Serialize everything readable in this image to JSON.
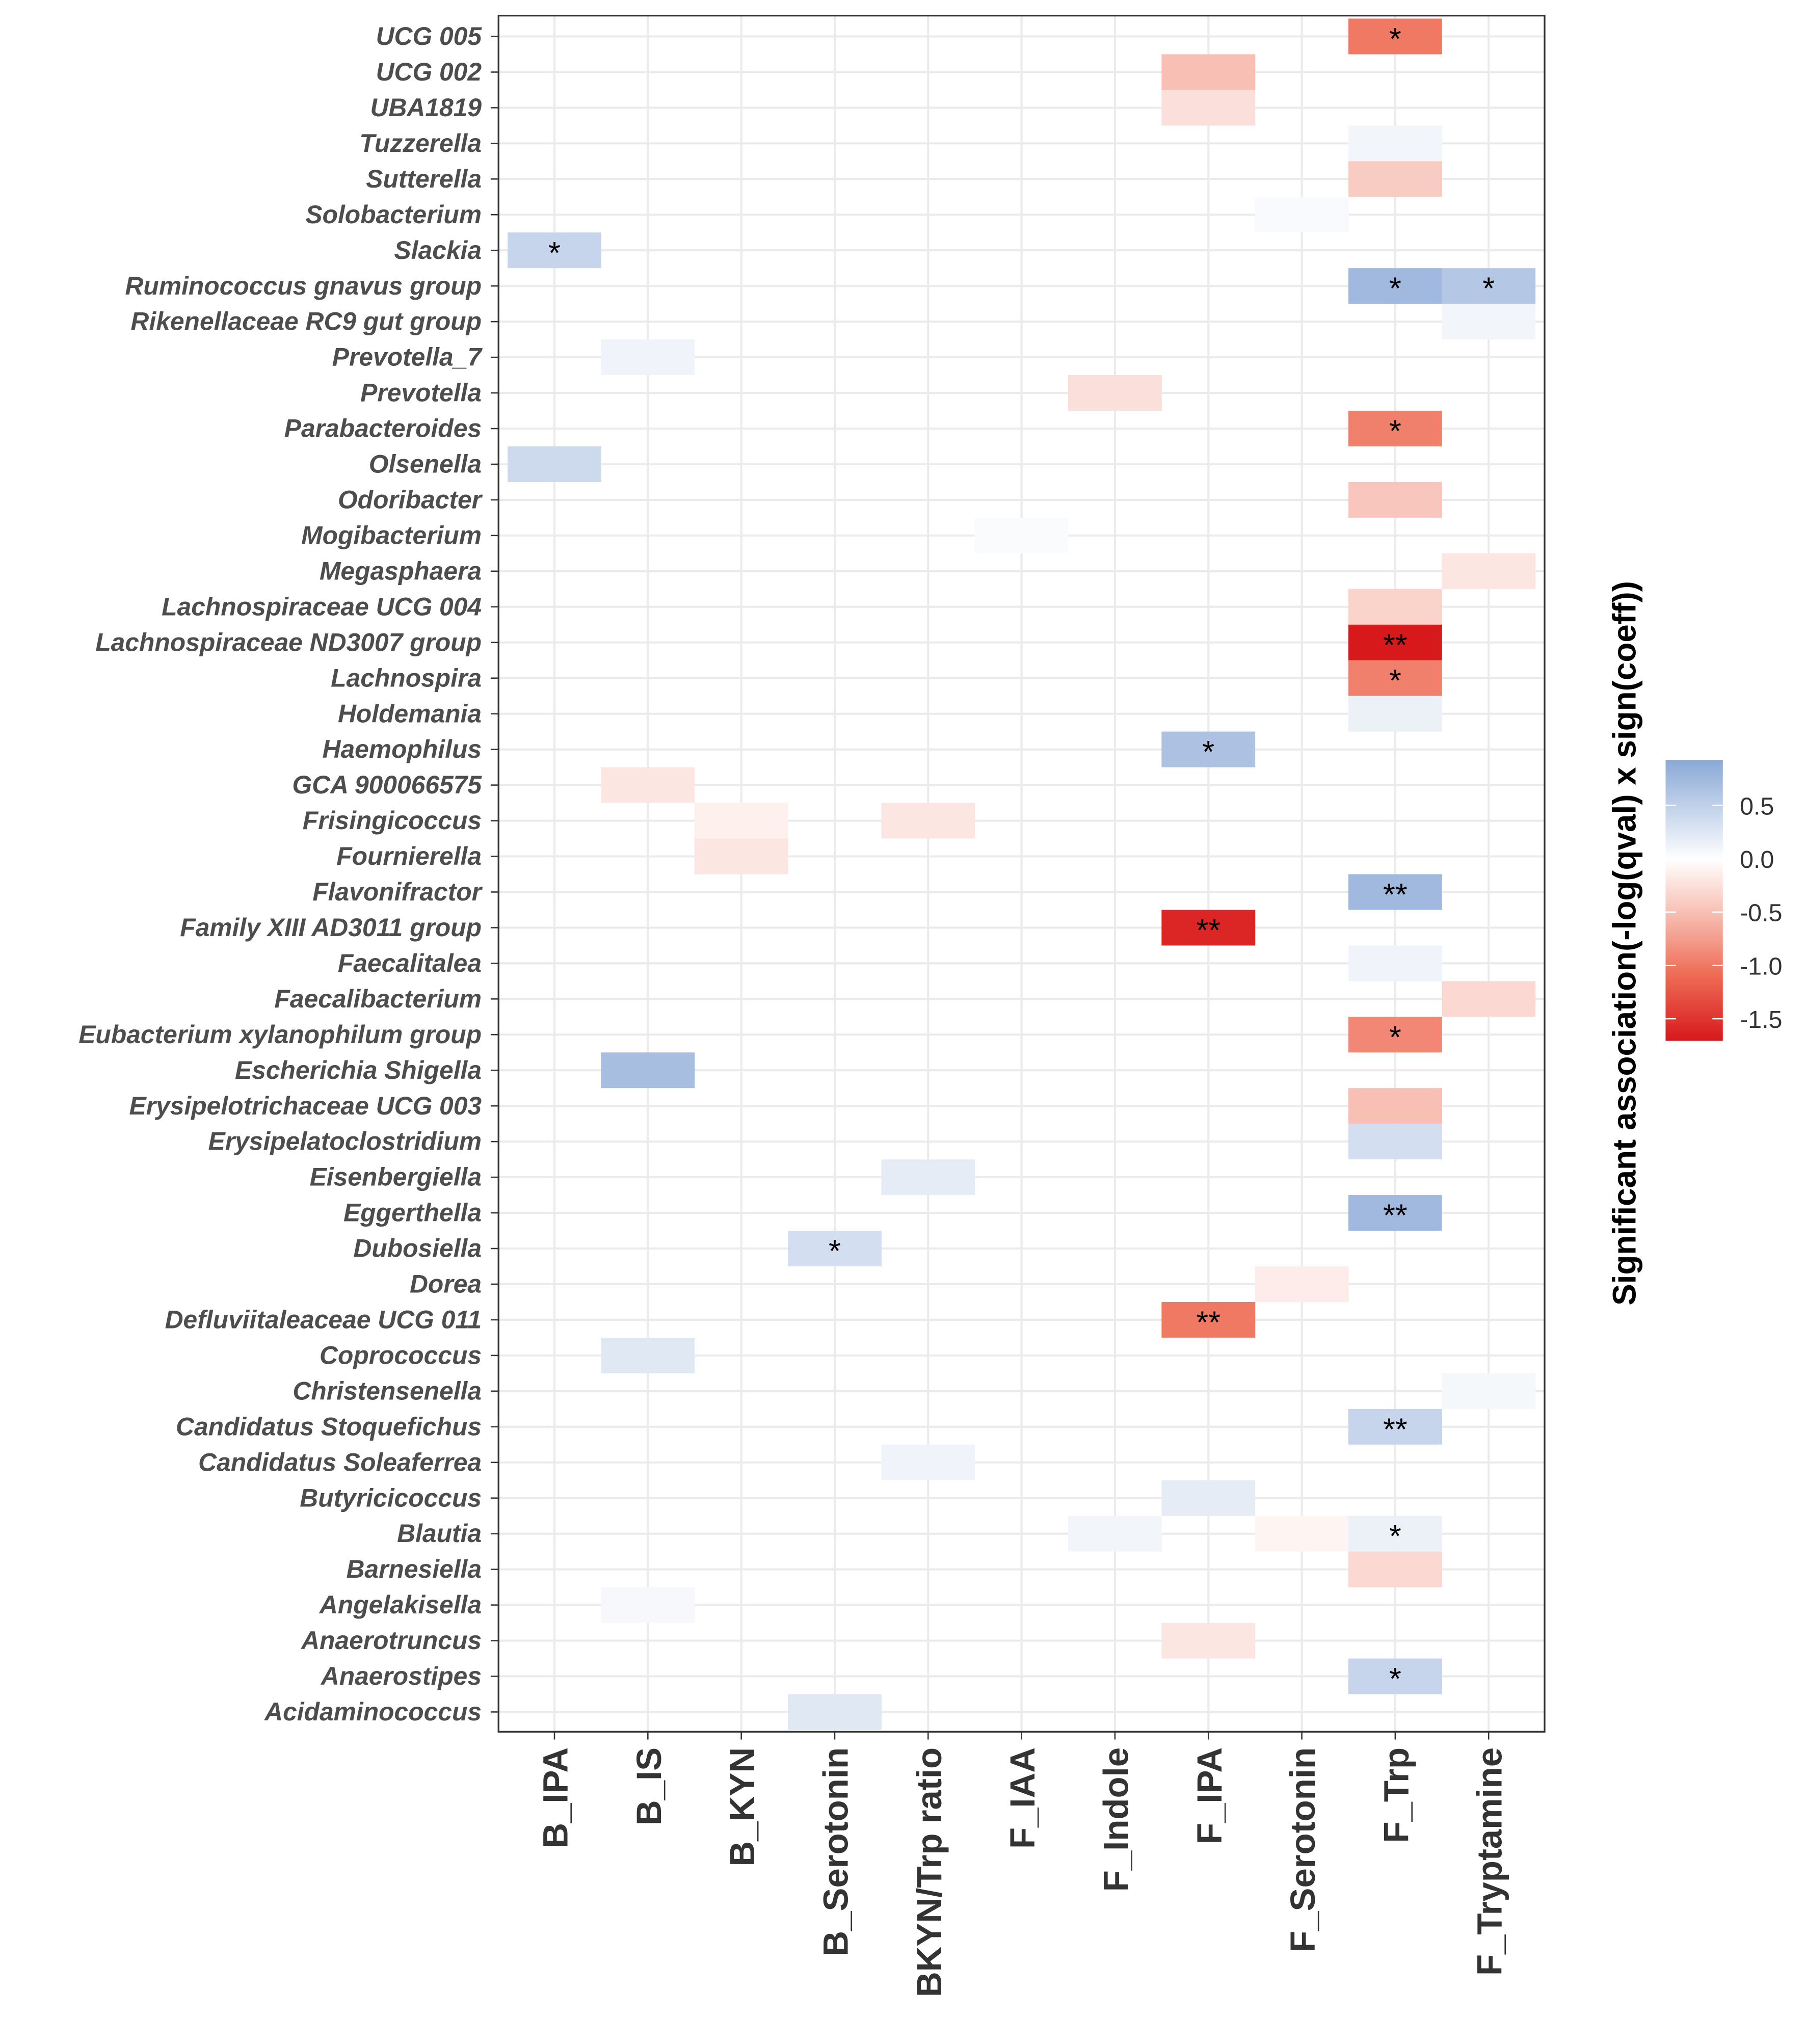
{
  "chart_data": {
    "type": "heatmap",
    "title": "",
    "xlabel": "",
    "ylabel": "",
    "legend": {
      "title": "Significant association(-log(qval) x sign(coeff))",
      "ticks": [
        0.5,
        0.0,
        -0.5,
        -1.0,
        -1.5
      ],
      "tick_labels": [
        "0.5",
        "0.0",
        "-0.5",
        "-1.0",
        "-1.5"
      ],
      "range": [
        -1.7,
        0.93
      ],
      "placement": "right",
      "colors": {
        "positive": "#8aa8d6",
        "zero": "#ffffff",
        "negative": "#d7191c"
      }
    },
    "x_categories": [
      "B_IPA",
      "B_IS",
      "B_KYN",
      "B_Serotonin",
      "BKYN/Trp ratio",
      "F_IAA",
      "F_Indole",
      "F_IPA",
      "F_Serotonin",
      "F_Trp",
      "F_Tryptamine"
    ],
    "y_categories": [
      "UCG 005",
      "UCG 002",
      "UBA1819",
      "Tuzzerella",
      "Sutterella",
      "Solobacterium",
      "Slackia",
      "Ruminococcus  gnavus group",
      "Rikenellaceae RC9 gut group",
      "Prevotella_7",
      "Prevotella",
      "Parabacteroides",
      "Olsenella",
      "Odoribacter",
      "Mogibacterium",
      "Megasphaera",
      "Lachnospiraceae UCG 004",
      "Lachnospiraceae ND3007 group",
      "Lachnospira",
      "Holdemania",
      "Haemophilus",
      "GCA 900066575",
      "Frisingicoccus",
      "Fournierella",
      "Flavonifractor",
      "Family XIII AD3011 group",
      "Faecalitalea",
      "Faecalibacterium",
      "Eubacterium  xylanophilum group",
      "Escherichia Shigella",
      "Erysipelotrichaceae UCG 003",
      "Erysipelatoclostridium",
      "Eisenbergiella",
      "Eggerthella",
      "Dubosiella",
      "Dorea",
      "Defluviitaleaceae UCG 011",
      "Coprococcus",
      "Christensenella",
      "Candidatus Stoquefichus",
      "Candidatus Soleaferrea",
      "Butyricicoccus",
      "Blautia",
      "Barnesiella",
      "Angelakisella",
      "Anaerotruncus",
      "Anaerostipes",
      "Acidaminococcus"
    ],
    "cells": [
      {
        "y": "UCG 005",
        "x": "F_Trp",
        "value": -1.0,
        "sig": "*"
      },
      {
        "y": "UCG 002",
        "x": "F_IPA",
        "value": -0.5,
        "sig": ""
      },
      {
        "y": "UBA1819",
        "x": "F_IPA",
        "value": -0.25,
        "sig": ""
      },
      {
        "y": "Tuzzerella",
        "x": "F_Trp",
        "value": 0.1,
        "sig": ""
      },
      {
        "y": "Sutterella",
        "x": "F_Trp",
        "value": -0.4,
        "sig": ""
      },
      {
        "y": "Solobacterium",
        "x": "F_Serotonin",
        "value": 0.05,
        "sig": ""
      },
      {
        "y": "Slackia",
        "x": "B_IPA",
        "value": 0.45,
        "sig": "*"
      },
      {
        "y": "Ruminococcus  gnavus group",
        "x": "F_Trp",
        "value": 0.75,
        "sig": "*"
      },
      {
        "y": "Ruminococcus  gnavus group",
        "x": "F_Tryptamine",
        "value": 0.6,
        "sig": "*"
      },
      {
        "y": "Rikenellaceae RC9 gut group",
        "x": "F_Tryptamine",
        "value": 0.1,
        "sig": ""
      },
      {
        "y": "Prevotella_7",
        "x": "B_IS",
        "value": 0.12,
        "sig": ""
      },
      {
        "y": "Prevotella",
        "x": "F_Indole",
        "value": -0.25,
        "sig": ""
      },
      {
        "y": "Parabacteroides",
        "x": "F_Trp",
        "value": -0.95,
        "sig": "*"
      },
      {
        "y": "Olsenella",
        "x": "B_IPA",
        "value": 0.4,
        "sig": ""
      },
      {
        "y": "Odoribacter",
        "x": "F_Trp",
        "value": -0.45,
        "sig": ""
      },
      {
        "y": "Mogibacterium",
        "x": "F_IAA",
        "value": 0.04,
        "sig": ""
      },
      {
        "y": "Megasphaera",
        "x": "F_Tryptamine",
        "value": -0.2,
        "sig": ""
      },
      {
        "y": "Lachnospiraceae UCG 004",
        "x": "F_Trp",
        "value": -0.35,
        "sig": ""
      },
      {
        "y": "Lachnospiraceae ND3007 group",
        "x": "F_Trp",
        "value": -1.7,
        "sig": "**"
      },
      {
        "y": "Lachnospira",
        "x": "F_Trp",
        "value": -0.95,
        "sig": "*"
      },
      {
        "y": "Holdemania",
        "x": "F_Trp",
        "value": 0.15,
        "sig": ""
      },
      {
        "y": "Haemophilus",
        "x": "F_IPA",
        "value": 0.65,
        "sig": "*"
      },
      {
        "y": "GCA 900066575",
        "x": "B_IS",
        "value": -0.2,
        "sig": ""
      },
      {
        "y": "Frisingicoccus",
        "x": "B_KYN",
        "value": -0.12,
        "sig": ""
      },
      {
        "y": "Frisingicoccus",
        "x": "BKYN/Trp ratio",
        "value": -0.2,
        "sig": ""
      },
      {
        "y": "Fournierella",
        "x": "B_KYN",
        "value": -0.2,
        "sig": ""
      },
      {
        "y": "Flavonifractor",
        "x": "F_Trp",
        "value": 0.75,
        "sig": "**"
      },
      {
        "y": "Family XIII AD3011 group",
        "x": "F_IPA",
        "value": -1.6,
        "sig": "**"
      },
      {
        "y": "Faecalitalea",
        "x": "F_Trp",
        "value": 0.12,
        "sig": ""
      },
      {
        "y": "Faecalibacterium",
        "x": "F_Tryptamine",
        "value": -0.3,
        "sig": ""
      },
      {
        "y": "Eubacterium  xylanophilum group",
        "x": "F_Trp",
        "value": -0.9,
        "sig": "*"
      },
      {
        "y": "Escherichia Shigella",
        "x": "B_IS",
        "value": 0.7,
        "sig": ""
      },
      {
        "y": "Erysipelotrichaceae UCG 003",
        "x": "F_Trp",
        "value": -0.5,
        "sig": ""
      },
      {
        "y": "Erysipelatoclostridium",
        "x": "F_Trp",
        "value": 0.35,
        "sig": ""
      },
      {
        "y": "Eisenbergiella",
        "x": "BKYN/Trp ratio",
        "value": 0.2,
        "sig": ""
      },
      {
        "y": "Eggerthella",
        "x": "F_Trp",
        "value": 0.75,
        "sig": "**"
      },
      {
        "y": "Dubosiella",
        "x": "B_Serotonin",
        "value": 0.35,
        "sig": "*"
      },
      {
        "y": "Dorea",
        "x": "F_Serotonin",
        "value": -0.15,
        "sig": ""
      },
      {
        "y": "Defluviitaleaceae UCG 011",
        "x": "F_IPA",
        "value": -1.0,
        "sig": "**"
      },
      {
        "y": "Coprococcus",
        "x": "B_IS",
        "value": 0.25,
        "sig": ""
      },
      {
        "y": "Christensenella",
        "x": "F_Tryptamine",
        "value": 0.08,
        "sig": ""
      },
      {
        "y": "Candidatus Stoquefichus",
        "x": "F_Trp",
        "value": 0.45,
        "sig": "**"
      },
      {
        "y": "Candidatus Soleaferrea",
        "x": "BKYN/Trp ratio",
        "value": 0.12,
        "sig": ""
      },
      {
        "y": "Butyricicoccus",
        "x": "F_IPA",
        "value": 0.2,
        "sig": ""
      },
      {
        "y": "Blautia",
        "x": "F_Indole",
        "value": 0.1,
        "sig": ""
      },
      {
        "y": "Blautia",
        "x": "F_Serotonin",
        "value": -0.08,
        "sig": ""
      },
      {
        "y": "Blautia",
        "x": "F_Trp",
        "value": 0.15,
        "sig": "*"
      },
      {
        "y": "Barnesiella",
        "x": "F_Trp",
        "value": -0.3,
        "sig": ""
      },
      {
        "y": "Angelakisella",
        "x": "B_IS",
        "value": 0.07,
        "sig": ""
      },
      {
        "y": "Anaerotruncus",
        "x": "F_IPA",
        "value": -0.2,
        "sig": ""
      },
      {
        "y": "Anaerostipes",
        "x": "F_Trp",
        "value": 0.45,
        "sig": "*"
      },
      {
        "y": "Acidaminococcus",
        "x": "B_Serotonin",
        "value": 0.25,
        "sig": ""
      }
    ]
  }
}
